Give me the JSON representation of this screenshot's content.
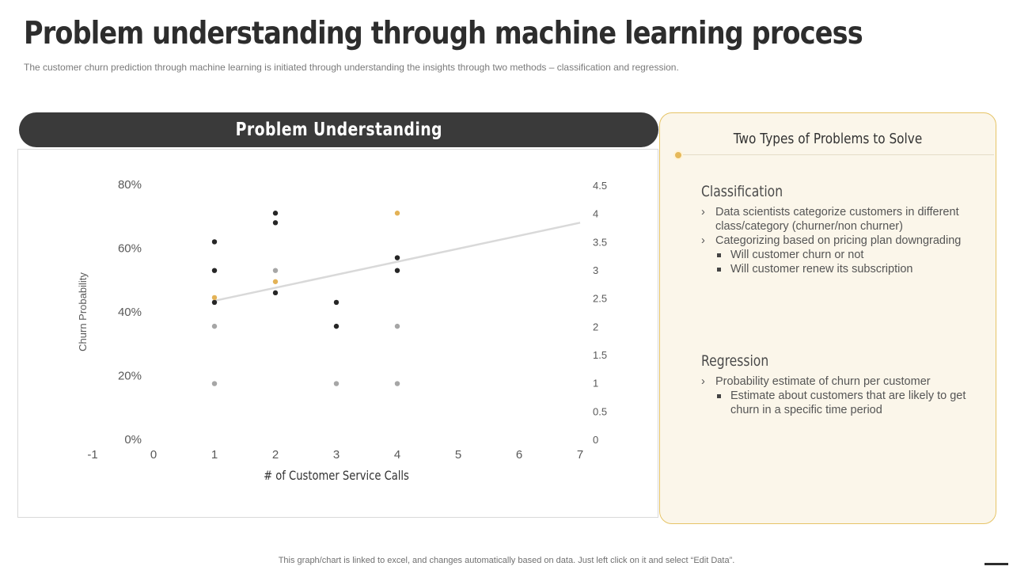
{
  "header": {
    "title": "Problem understanding through machine learning process",
    "subtitle": "The customer churn prediction through machine learning is initiated through understanding the insights through two methods – classification and regression."
  },
  "left_panel": {
    "pill_label": "Problem Understanding"
  },
  "chart_data": {
    "type": "scatter",
    "xlabel": "# of Customer Service Calls",
    "ylabel": "Churn Probability",
    "xlim": [
      -1,
      7
    ],
    "x_ticks": [
      "-1",
      "0",
      "1",
      "2",
      "3",
      "4",
      "5",
      "6",
      "7"
    ],
    "ylim": [
      0,
      0.8
    ],
    "y_ticks": [
      "0%",
      "20%",
      "40%",
      "60%",
      "80%"
    ],
    "y2lim": [
      0,
      4.5
    ],
    "y2_ticks": [
      "0",
      "0.5",
      "1",
      "1.5",
      "2",
      "2.5",
      "3",
      "3.5",
      "4",
      "4.5"
    ],
    "grid": false,
    "legend": "none",
    "series": [
      {
        "color": "#262626",
        "axis": "left",
        "points": [
          [
            1,
            0.62
          ],
          [
            1,
            0.53
          ],
          [
            1,
            0.43
          ],
          [
            2,
            0.71
          ],
          [
            2,
            0.68
          ],
          [
            2,
            0.46
          ],
          [
            3,
            0.43
          ],
          [
            3,
            0.355
          ],
          [
            4,
            0.57
          ],
          [
            4,
            0.53
          ]
        ]
      },
      {
        "color": "#a6a6a6",
        "axis": "left",
        "points": [
          [
            1,
            0.355
          ],
          [
            1,
            0.175
          ],
          [
            2,
            0.53
          ],
          [
            3,
            0.175
          ],
          [
            4,
            0.355
          ],
          [
            4,
            0.175
          ]
        ]
      },
      {
        "color": "#e3b256",
        "axis": "left",
        "points": [
          [
            1,
            0.445
          ],
          [
            2,
            0.495
          ],
          [
            4,
            0.71
          ]
        ]
      }
    ],
    "trendline": {
      "color": "#d9d9d9",
      "from": [
        1,
        0.435
      ],
      "to": [
        7,
        0.68
      ]
    }
  },
  "right_panel": {
    "title": "Two Types of Problems to Solve",
    "classification": {
      "heading": "Classification",
      "items": [
        {
          "level": 1,
          "text": "Data scientists categorize customers in different class/category (churner/non churner)"
        },
        {
          "level": 1,
          "text": "Categorizing based on pricing plan downgrading"
        },
        {
          "level": 2,
          "text": "Will customer churn or not"
        },
        {
          "level": 2,
          "text": "Will customer renew its subscription"
        }
      ]
    },
    "regression": {
      "heading": "Regression",
      "items": [
        {
          "level": 1,
          "text": "Probability estimate of churn  per customer"
        },
        {
          "level": 2,
          "text": "Estimate about customers that are likely to get churn in a specific time period"
        }
      ]
    }
  },
  "footer": {
    "note": "This graph/chart is linked to excel,  and changes automatically based on data. Just left click on it and select “Edit Data”."
  }
}
